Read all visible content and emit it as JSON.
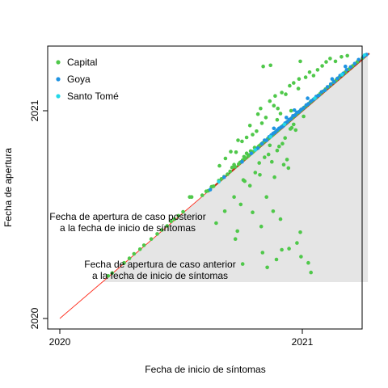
{
  "chart_data": {
    "type": "scatter",
    "xlabel": "Fecha de inicio de síntomas",
    "ylabel": "Fecha de apertura",
    "x_ticks": [
      "2020",
      "2021"
    ],
    "y_ticks": [
      "2020",
      "2021"
    ],
    "x_domain": [
      "2020-01-01",
      "2021-04-17"
    ],
    "y_domain": [
      "2020-01-01",
      "2021-04-17"
    ],
    "grid": false,
    "legend_position": "top-left",
    "legend": [
      {
        "name": "Capital",
        "color": "#4fc84a"
      },
      {
        "name": "Goya",
        "color": "#1f93e2"
      },
      {
        "name": "Santo Tomé",
        "color": "#22d8e8"
      }
    ],
    "shaded_region_color": "#e5e5e5",
    "diagonal_colors": [
      "#ff2a1a",
      "#c03010"
    ],
    "annotations": [
      {
        "line1": "Fecha de apertura de caso posterior",
        "line2": "a la fecha de inicio de síntomas"
      },
      {
        "line1": "Fecha de apertura de caso anterior",
        "line2": "a la fecha de inicio de síntomas"
      }
    ],
    "series": [
      {
        "name": "Capital",
        "color": "#4fc84a",
        "points": [
          [
            "2020-03-14",
            "2020-03-16"
          ],
          [
            "2020-03-20",
            "2020-03-21"
          ],
          [
            "2020-04-07",
            "2020-04-08"
          ],
          [
            "2020-04-15",
            "2020-04-16"
          ],
          [
            "2020-04-22",
            "2020-04-24"
          ],
          [
            "2020-05-01",
            "2020-05-02"
          ],
          [
            "2020-05-07",
            "2020-05-09"
          ],
          [
            "2020-05-18",
            "2020-05-20"
          ],
          [
            "2020-05-27",
            "2020-05-29"
          ],
          [
            "2020-06-03",
            "2020-06-05"
          ],
          [
            "2020-06-11",
            "2020-06-12"
          ],
          [
            "2020-06-17",
            "2020-06-20"
          ],
          [
            "2020-06-22",
            "2020-06-24"
          ],
          [
            "2020-06-28",
            "2020-06-30"
          ],
          [
            "2020-07-05",
            "2020-07-07"
          ],
          [
            "2020-07-15",
            "2020-08-02"
          ],
          [
            "2020-07-18",
            "2020-08-02"
          ],
          [
            "2020-08-03",
            "2020-08-05"
          ],
          [
            "2020-08-09",
            "2020-08-12"
          ],
          [
            "2020-08-12",
            "2020-08-13"
          ],
          [
            "2020-08-17",
            "2020-08-20"
          ],
          [
            "2020-08-20",
            "2020-08-21"
          ],
          [
            "2020-08-28",
            "2020-08-31"
          ],
          [
            "2020-09-01",
            "2020-09-03"
          ],
          [
            "2020-09-05",
            "2020-09-07"
          ],
          [
            "2020-09-10",
            "2020-09-11"
          ],
          [
            "2020-09-14",
            "2020-09-16"
          ],
          [
            "2020-09-17",
            "2020-09-23"
          ],
          [
            "2020-09-20",
            "2020-09-28"
          ],
          [
            "2020-09-22",
            "2020-09-24"
          ],
          [
            "2020-09-27",
            "2020-09-29"
          ],
          [
            "2020-09-29",
            "2020-10-02"
          ],
          [
            "2020-10-01",
            "2020-10-03"
          ],
          [
            "2020-10-03",
            "2020-10-06"
          ],
          [
            "2020-10-05",
            "2020-10-12"
          ],
          [
            "2020-10-07",
            "2020-10-09"
          ],
          [
            "2020-10-09",
            "2020-10-18"
          ],
          [
            "2020-10-11",
            "2020-10-13"
          ],
          [
            "2020-10-13",
            "2020-10-15"
          ],
          [
            "2020-10-15",
            "2020-10-22"
          ],
          [
            "2020-10-17",
            "2020-10-19"
          ],
          [
            "2020-10-19",
            "2020-10-21"
          ],
          [
            "2020-10-21",
            "2020-10-28"
          ],
          [
            "2020-10-23",
            "2020-10-25"
          ],
          [
            "2020-10-25",
            "2020-10-27"
          ],
          [
            "2020-10-27",
            "2020-10-30"
          ],
          [
            "2020-10-29",
            "2020-11-01"
          ],
          [
            "2020-10-31",
            "2020-11-03"
          ],
          [
            "2020-11-02",
            "2020-11-05"
          ],
          [
            "2020-11-04",
            "2020-11-07"
          ],
          [
            "2020-11-06",
            "2020-11-09"
          ],
          [
            "2020-11-08",
            "2020-11-10"
          ],
          [
            "2020-11-10",
            "2020-11-13"
          ],
          [
            "2020-11-12",
            "2020-11-14"
          ],
          [
            "2020-11-14",
            "2020-11-17"
          ],
          [
            "2020-11-16",
            "2020-11-19"
          ],
          [
            "2020-11-18",
            "2020-11-20"
          ],
          [
            "2020-11-20",
            "2020-11-23"
          ],
          [
            "2020-11-22",
            "2020-11-25"
          ],
          [
            "2020-11-24",
            "2020-11-27"
          ],
          [
            "2020-11-26",
            "2020-11-28"
          ],
          [
            "2020-11-28",
            "2020-12-01"
          ],
          [
            "2020-11-30",
            "2020-12-03"
          ],
          [
            "2020-12-02",
            "2020-12-05"
          ],
          [
            "2020-12-04",
            "2020-12-07"
          ],
          [
            "2020-12-06",
            "2020-12-09"
          ],
          [
            "2020-12-08",
            "2020-12-11"
          ],
          [
            "2020-12-10",
            "2020-12-13"
          ],
          [
            "2020-12-12",
            "2020-12-15"
          ],
          [
            "2020-12-14",
            "2020-12-17"
          ],
          [
            "2020-12-16",
            "2020-12-19"
          ],
          [
            "2020-12-18",
            "2020-12-21"
          ],
          [
            "2020-12-20",
            "2020-12-23"
          ],
          [
            "2020-12-22",
            "2020-12-25"
          ],
          [
            "2020-12-24",
            "2020-12-27"
          ],
          [
            "2020-12-26",
            "2020-12-29"
          ],
          [
            "2020-12-28",
            "2020-12-31"
          ],
          [
            "2020-12-30",
            "2021-01-02"
          ],
          [
            "2021-01-01",
            "2021-01-04"
          ],
          [
            "2021-01-04",
            "2021-01-07"
          ],
          [
            "2021-01-07",
            "2021-01-10"
          ],
          [
            "2021-01-10",
            "2021-01-13"
          ],
          [
            "2021-01-13",
            "2021-01-16"
          ],
          [
            "2021-01-16",
            "2021-01-19"
          ],
          [
            "2021-01-19",
            "2021-01-22"
          ],
          [
            "2021-01-22",
            "2021-01-25"
          ],
          [
            "2021-01-25",
            "2021-01-28"
          ],
          [
            "2021-01-28",
            "2021-01-31"
          ],
          [
            "2021-02-01",
            "2021-02-04"
          ],
          [
            "2021-02-05",
            "2021-02-08"
          ],
          [
            "2021-02-09",
            "2021-02-12"
          ],
          [
            "2021-02-13",
            "2021-02-16"
          ],
          [
            "2021-02-17",
            "2021-02-20"
          ],
          [
            "2021-02-21",
            "2021-02-24"
          ],
          [
            "2021-02-25",
            "2021-02-28"
          ],
          [
            "2021-03-02",
            "2021-03-05"
          ],
          [
            "2021-03-07",
            "2021-03-10"
          ],
          [
            "2021-03-12",
            "2021-03-15"
          ],
          [
            "2021-03-18",
            "2021-03-21"
          ],
          [
            "2021-03-25",
            "2021-03-28"
          ],
          [
            "2021-04-02",
            "2021-04-04"
          ],
          [
            "2020-08-29",
            "2020-09-26"
          ],
          [
            "2020-09-07",
            "2020-10-09"
          ],
          [
            "2020-09-15",
            "2020-10-21"
          ],
          [
            "2020-09-23",
            "2020-10-20"
          ],
          [
            "2020-09-26",
            "2020-11-10"
          ],
          [
            "2020-10-02",
            "2020-11-08"
          ],
          [
            "2020-10-09",
            "2020-11-15"
          ],
          [
            "2020-10-14",
            "2020-12-06"
          ],
          [
            "2020-10-18",
            "2020-11-20"
          ],
          [
            "2020-10-26",
            "2020-12-26"
          ],
          [
            "2020-11-01",
            "2020-12-10"
          ],
          [
            "2020-11-07",
            "2020-12-20"
          ],
          [
            "2020-11-13",
            "2021-01-18"
          ],
          [
            "2020-11-19",
            "2021-01-10"
          ],
          [
            "2020-11-25",
            "2021-01-05"
          ],
          [
            "2020-12-01",
            "2021-02-02"
          ],
          [
            "2020-12-07",
            "2021-01-30"
          ],
          [
            "2020-12-13",
            "2021-02-14"
          ],
          [
            "2020-12-19",
            "2021-02-19"
          ],
          [
            "2020-12-27",
            "2021-02-26"
          ],
          [
            "2021-01-06",
            "2021-03-01"
          ],
          [
            "2021-01-12",
            "2021-03-10"
          ],
          [
            "2021-01-18",
            "2021-03-04"
          ],
          [
            "2021-01-24",
            "2021-03-14"
          ],
          [
            "2021-01-31",
            "2021-03-21"
          ],
          [
            "2021-02-06",
            "2021-03-28"
          ],
          [
            "2021-02-12",
            "2021-04-03"
          ],
          [
            "2021-02-20",
            "2021-03-29"
          ],
          [
            "2021-03-01",
            "2021-04-06"
          ],
          [
            "2021-03-10",
            "2021-04-08"
          ],
          [
            "2020-11-03",
            "2021-03-20"
          ],
          [
            "2020-11-14",
            "2021-03-22"
          ],
          [
            "2020-12-29",
            "2021-03-29"
          ],
          [
            "2020-12-26",
            "2021-02-09"
          ],
          [
            "2020-11-21",
            "2021-01-27"
          ],
          [
            "2020-10-30",
            "2021-01-05"
          ],
          [
            "2020-11-24",
            "2020-12-16"
          ],
          [
            "2020-12-15",
            "2021-01-01"
          ],
          [
            "2020-10-24",
            "2020-11-26"
          ],
          [
            "2020-11-29",
            "2020-12-27"
          ],
          [
            "2020-08-24",
            "2020-06-17"
          ],
          [
            "2020-09-06",
            "2020-07-08"
          ],
          [
            "2020-09-20",
            "2020-08-02"
          ],
          [
            "2020-09-22",
            "2020-05-20"
          ],
          [
            "2020-09-25",
            "2020-06-03"
          ],
          [
            "2020-10-04",
            "2020-09-01"
          ],
          [
            "2020-10-06",
            "2020-08-30"
          ],
          [
            "2020-10-14",
            "2020-08-22"
          ],
          [
            "2020-10-18",
            "2020-07-06"
          ],
          [
            "2020-10-22",
            "2020-09-14"
          ],
          [
            "2020-10-28",
            "2020-10-01"
          ],
          [
            "2020-11-05",
            "2020-10-11"
          ],
          [
            "2020-11-08",
            "2020-08-02"
          ],
          [
            "2020-11-11",
            "2020-10-16"
          ],
          [
            "2020-11-16",
            "2020-10-03"
          ],
          [
            "2020-11-20",
            "2020-09-06"
          ],
          [
            "2020-11-24",
            "2020-10-23"
          ],
          [
            "2020-12-02",
            "2020-11-04"
          ],
          [
            "2020-12-04",
            "2020-09-28"
          ],
          [
            "2020-12-06",
            "2020-11-14"
          ],
          [
            "2020-12-11",
            "2020-09-22"
          ],
          [
            "2020-12-14",
            "2020-11-30"
          ],
          [
            "2020-12-19",
            "2020-12-08"
          ],
          [
            "2020-12-22",
            "2020-11-28"
          ],
          [
            "2021-01-03",
            "2020-12-22"
          ],
          [
            "2020-11-02",
            "2020-04-26"
          ],
          [
            "2020-11-09",
            "2020-03-31"
          ],
          [
            "2020-11-23",
            "2020-04-14"
          ],
          [
            "2020-12-01",
            "2020-05-01"
          ],
          [
            "2020-12-12",
            "2020-05-03"
          ],
          [
            "2020-12-24",
            "2020-05-13"
          ],
          [
            "2020-12-30",
            "2020-04-19"
          ],
          [
            "2021-01-10",
            "2020-04-08"
          ],
          [
            "2021-01-14",
            "2020-03-22"
          ],
          [
            "2020-10-03",
            "2020-04-06"
          ],
          [
            "2020-12-29",
            "2020-06-01"
          ],
          [
            "2020-11-18",
            "2020-07-08"
          ],
          [
            "2020-11-29",
            "2020-06-24"
          ],
          [
            "2020-10-31",
            "2020-06-11"
          ],
          [
            "2020-09-30",
            "2020-07-20"
          ],
          [
            "2020-10-29",
            "2020-09-10"
          ],
          [
            "2020-11-13",
            "2020-11-01"
          ],
          [
            "2020-11-27",
            "2020-10-30"
          ],
          [
            "2020-12-09",
            "2020-10-07"
          ],
          [
            "2020-12-16",
            "2020-12-02"
          ]
        ]
      },
      {
        "name": "Goya",
        "color": "#1f93e2",
        "points": [
          [
            "2020-08-15",
            "2020-08-15"
          ],
          [
            "2020-09-05",
            "2020-09-06"
          ],
          [
            "2020-10-02",
            "2020-10-03"
          ],
          [
            "2020-10-16",
            "2020-10-18"
          ],
          [
            "2020-10-26",
            "2020-10-27"
          ],
          [
            "2020-11-01",
            "2020-11-04"
          ],
          [
            "2020-11-05",
            "2020-11-10"
          ],
          [
            "2020-11-08",
            "2020-11-10"
          ],
          [
            "2020-11-12",
            "2020-11-16"
          ],
          [
            "2020-11-15",
            "2020-11-19"
          ],
          [
            "2020-11-18",
            "2020-11-22"
          ],
          [
            "2020-11-21",
            "2020-11-24"
          ],
          [
            "2020-11-24",
            "2020-11-28"
          ],
          [
            "2020-11-27",
            "2020-12-01"
          ],
          [
            "2020-11-30",
            "2020-12-03"
          ],
          [
            "2020-12-03",
            "2020-12-05"
          ],
          [
            "2020-12-06",
            "2020-12-10"
          ],
          [
            "2020-12-09",
            "2020-12-12"
          ],
          [
            "2020-12-12",
            "2020-12-16"
          ],
          [
            "2020-12-15",
            "2020-12-18"
          ],
          [
            "2020-12-18",
            "2020-12-23"
          ],
          [
            "2020-12-21",
            "2020-12-24"
          ],
          [
            "2020-12-24",
            "2020-12-29"
          ],
          [
            "2020-12-27",
            "2020-12-30"
          ],
          [
            "2020-12-30",
            "2021-01-03"
          ],
          [
            "2021-01-03",
            "2021-01-06"
          ],
          [
            "2021-01-07",
            "2021-01-11"
          ],
          [
            "2021-01-10",
            "2021-01-13"
          ],
          [
            "2021-01-14",
            "2021-01-18"
          ],
          [
            "2021-01-18",
            "2021-01-21"
          ],
          [
            "2021-01-22",
            "2021-01-26"
          ],
          [
            "2021-01-26",
            "2021-01-28"
          ],
          [
            "2021-01-30",
            "2021-02-03"
          ],
          [
            "2021-02-04",
            "2021-02-06"
          ],
          [
            "2021-02-08",
            "2021-02-12"
          ],
          [
            "2021-02-13",
            "2021-02-17"
          ],
          [
            "2021-02-18",
            "2021-02-21"
          ],
          [
            "2021-02-23",
            "2021-02-27"
          ],
          [
            "2021-02-27",
            "2021-03-04"
          ],
          [
            "2021-03-04",
            "2021-03-08"
          ],
          [
            "2021-03-09",
            "2021-03-14"
          ],
          [
            "2021-03-15",
            "2021-03-19"
          ],
          [
            "2021-03-21",
            "2021-03-25"
          ],
          [
            "2021-03-27",
            "2021-04-01"
          ],
          [
            "2021-04-03",
            "2021-04-06"
          ],
          [
            "2021-04-08",
            "2021-04-10"
          ],
          [
            "2020-11-19",
            "2020-12-01"
          ],
          [
            "2020-12-08",
            "2020-12-20"
          ],
          [
            "2020-12-20",
            "2021-01-02"
          ],
          [
            "2021-01-09",
            "2021-01-23"
          ],
          [
            "2021-02-15",
            "2021-02-26"
          ],
          [
            "2021-03-07",
            "2021-03-20"
          ]
        ]
      },
      {
        "name": "Santo Tomé",
        "color": "#22d8e8",
        "points": [
          [
            "2020-08-28",
            "2020-08-29"
          ],
          [
            "2020-10-22",
            "2020-10-24"
          ],
          [
            "2020-11-14",
            "2020-11-16"
          ],
          [
            "2020-12-05",
            "2020-12-08"
          ],
          [
            "2021-01-20",
            "2021-01-23"
          ],
          [
            "2021-03-02",
            "2021-03-06"
          ],
          [
            "2021-04-05",
            "2021-04-09"
          ]
        ]
      }
    ]
  }
}
